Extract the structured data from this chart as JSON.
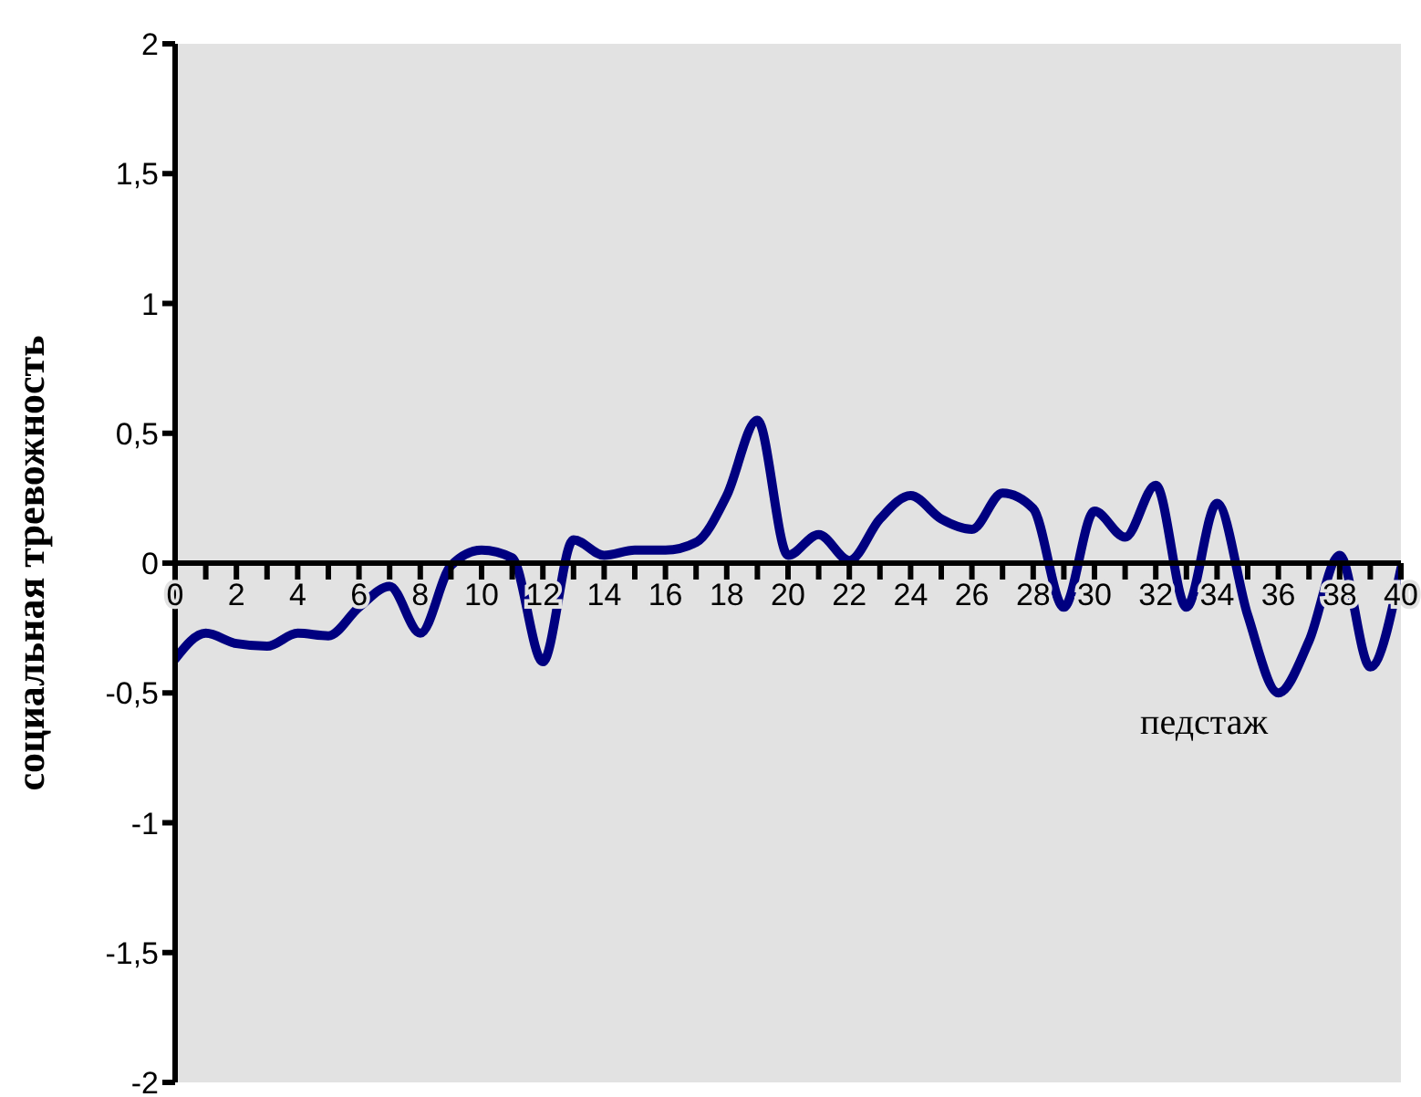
{
  "chart_data": {
    "type": "line",
    "xlabel": "педстаж",
    "ylabel": "социальная тревожность",
    "x": [
      0,
      1,
      2,
      3,
      4,
      5,
      6,
      7,
      8,
      9,
      10,
      11,
      12,
      13,
      14,
      15,
      16,
      17,
      18,
      19,
      20,
      21,
      22,
      23,
      24,
      25,
      26,
      27,
      28,
      29,
      30,
      31,
      32,
      33,
      34,
      35,
      36,
      37,
      38,
      39,
      40
    ],
    "series": [
      {
        "color": "#000080",
        "values": [
          -0.37,
          -0.27,
          -0.31,
          -0.32,
          -0.27,
          -0.28,
          -0.17,
          -0.09,
          -0.27,
          -0.01,
          0.05,
          0.02,
          -0.38,
          0.09,
          0.03,
          0.05,
          0.05,
          0.08,
          0.26,
          0.55,
          0.03,
          0.11,
          0.01,
          0.17,
          0.26,
          0.17,
          0.13,
          0.27,
          0.21,
          -0.17,
          0.2,
          0.1,
          0.3,
          -0.17,
          0.23,
          -0.2,
          -0.5,
          -0.3,
          0.03,
          -0.4,
          -0.02
        ]
      }
    ],
    "xlim": [
      0,
      40
    ],
    "xticks": [
      0,
      {
        "value": 1,
        "label": null
      },
      2,
      {
        "value": 3,
        "label": null
      },
      4,
      {
        "value": 5,
        "label": null
      },
      6,
      {
        "value": 7,
        "label": null
      },
      8,
      {
        "value": 9,
        "label": null
      },
      10,
      {
        "value": 11,
        "label": null
      },
      12,
      {
        "value": 13,
        "label": null
      },
      14,
      {
        "value": 15,
        "label": null
      },
      16,
      {
        "value": 17,
        "label": null
      },
      18,
      {
        "value": 19,
        "label": null
      },
      20,
      {
        "value": 21,
        "label": null
      },
      22,
      {
        "value": 23,
        "label": null
      },
      24,
      {
        "value": 25,
        "label": null
      },
      26,
      {
        "value": 27,
        "label": null
      },
      28,
      {
        "value": 29,
        "label": null
      },
      30,
      {
        "value": 31,
        "label": null
      },
      32,
      {
        "value": 33,
        "label": null
      },
      34,
      {
        "value": 35,
        "label": null
      },
      36,
      {
        "value": 37,
        "label": null
      },
      38,
      {
        "value": 39,
        "label": null
      },
      40
    ],
    "ylim": [
      -2,
      2
    ],
    "yticks": [
      {
        "value": -2,
        "label": "-2"
      },
      {
        "value": -1.5,
        "label": "-1,5"
      },
      {
        "value": -1,
        "label": "-1"
      },
      {
        "value": -0.5,
        "label": "-0,5"
      },
      {
        "value": 0,
        "label": "0"
      },
      {
        "value": 0.5,
        "label": "0,5"
      },
      {
        "value": 1,
        "label": "1"
      },
      {
        "value": 1.5,
        "label": "1,5"
      },
      {
        "value": 2,
        "label": "2"
      }
    ],
    "grid": false,
    "legend": false,
    "marker": "none",
    "line_style": "solid"
  }
}
